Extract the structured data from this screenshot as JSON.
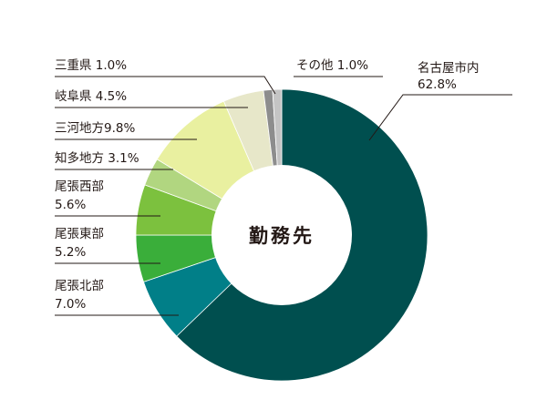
{
  "chart_data": {
    "type": "pie",
    "style": "donut",
    "center_label": "勤務先",
    "direction": "clockwise",
    "start": "12 o'clock",
    "slices": [
      {
        "name": "名古屋市内",
        "value": 62.8,
        "value_text": "62.8%",
        "color": "#004f4f"
      },
      {
        "name": "尾張北部",
        "value": 7.0,
        "value_text": "7.0%",
        "color": "#017f88"
      },
      {
        "name": "尾張東部",
        "value": 5.2,
        "value_text": "5.2%",
        "color": "#3aae3a"
      },
      {
        "name": "尾張西部",
        "value": 5.6,
        "value_text": "5.6%",
        "color": "#7cc13e"
      },
      {
        "name": "知多地方",
        "value": 3.1,
        "value_text": "3.1%",
        "color": "#b1d680"
      },
      {
        "name": "三河地方",
        "value": 9.8,
        "value_text": "9.8%",
        "color": "#e9f0a0"
      },
      {
        "name": "岐阜県",
        "value": 4.5,
        "value_text": "4.5%",
        "color": "#e7e7c9"
      },
      {
        "name": "三重県",
        "value": 1.0,
        "value_text": "1.0%",
        "color": "#8d8d8d"
      },
      {
        "name": "その他",
        "value": 1.0,
        "value_text": "1.0%",
        "color": "#c4c4c4"
      }
    ],
    "labels": [
      {
        "text": "名古屋市内"
      },
      {
        "text": "62.8%"
      },
      {
        "text": "尾張北部"
      },
      {
        "text": "7.0%"
      },
      {
        "text": "尾張東部"
      },
      {
        "text": "5.2%"
      },
      {
        "text": "尾張西部"
      },
      {
        "text": "5.6%"
      },
      {
        "text": "知多地方 3.1%"
      },
      {
        "text": "三河地方9.8%"
      },
      {
        "text": "岐阜県 4.5%"
      },
      {
        "text": "三重県 1.0%"
      },
      {
        "text": "その他 1.0%"
      }
    ]
  }
}
